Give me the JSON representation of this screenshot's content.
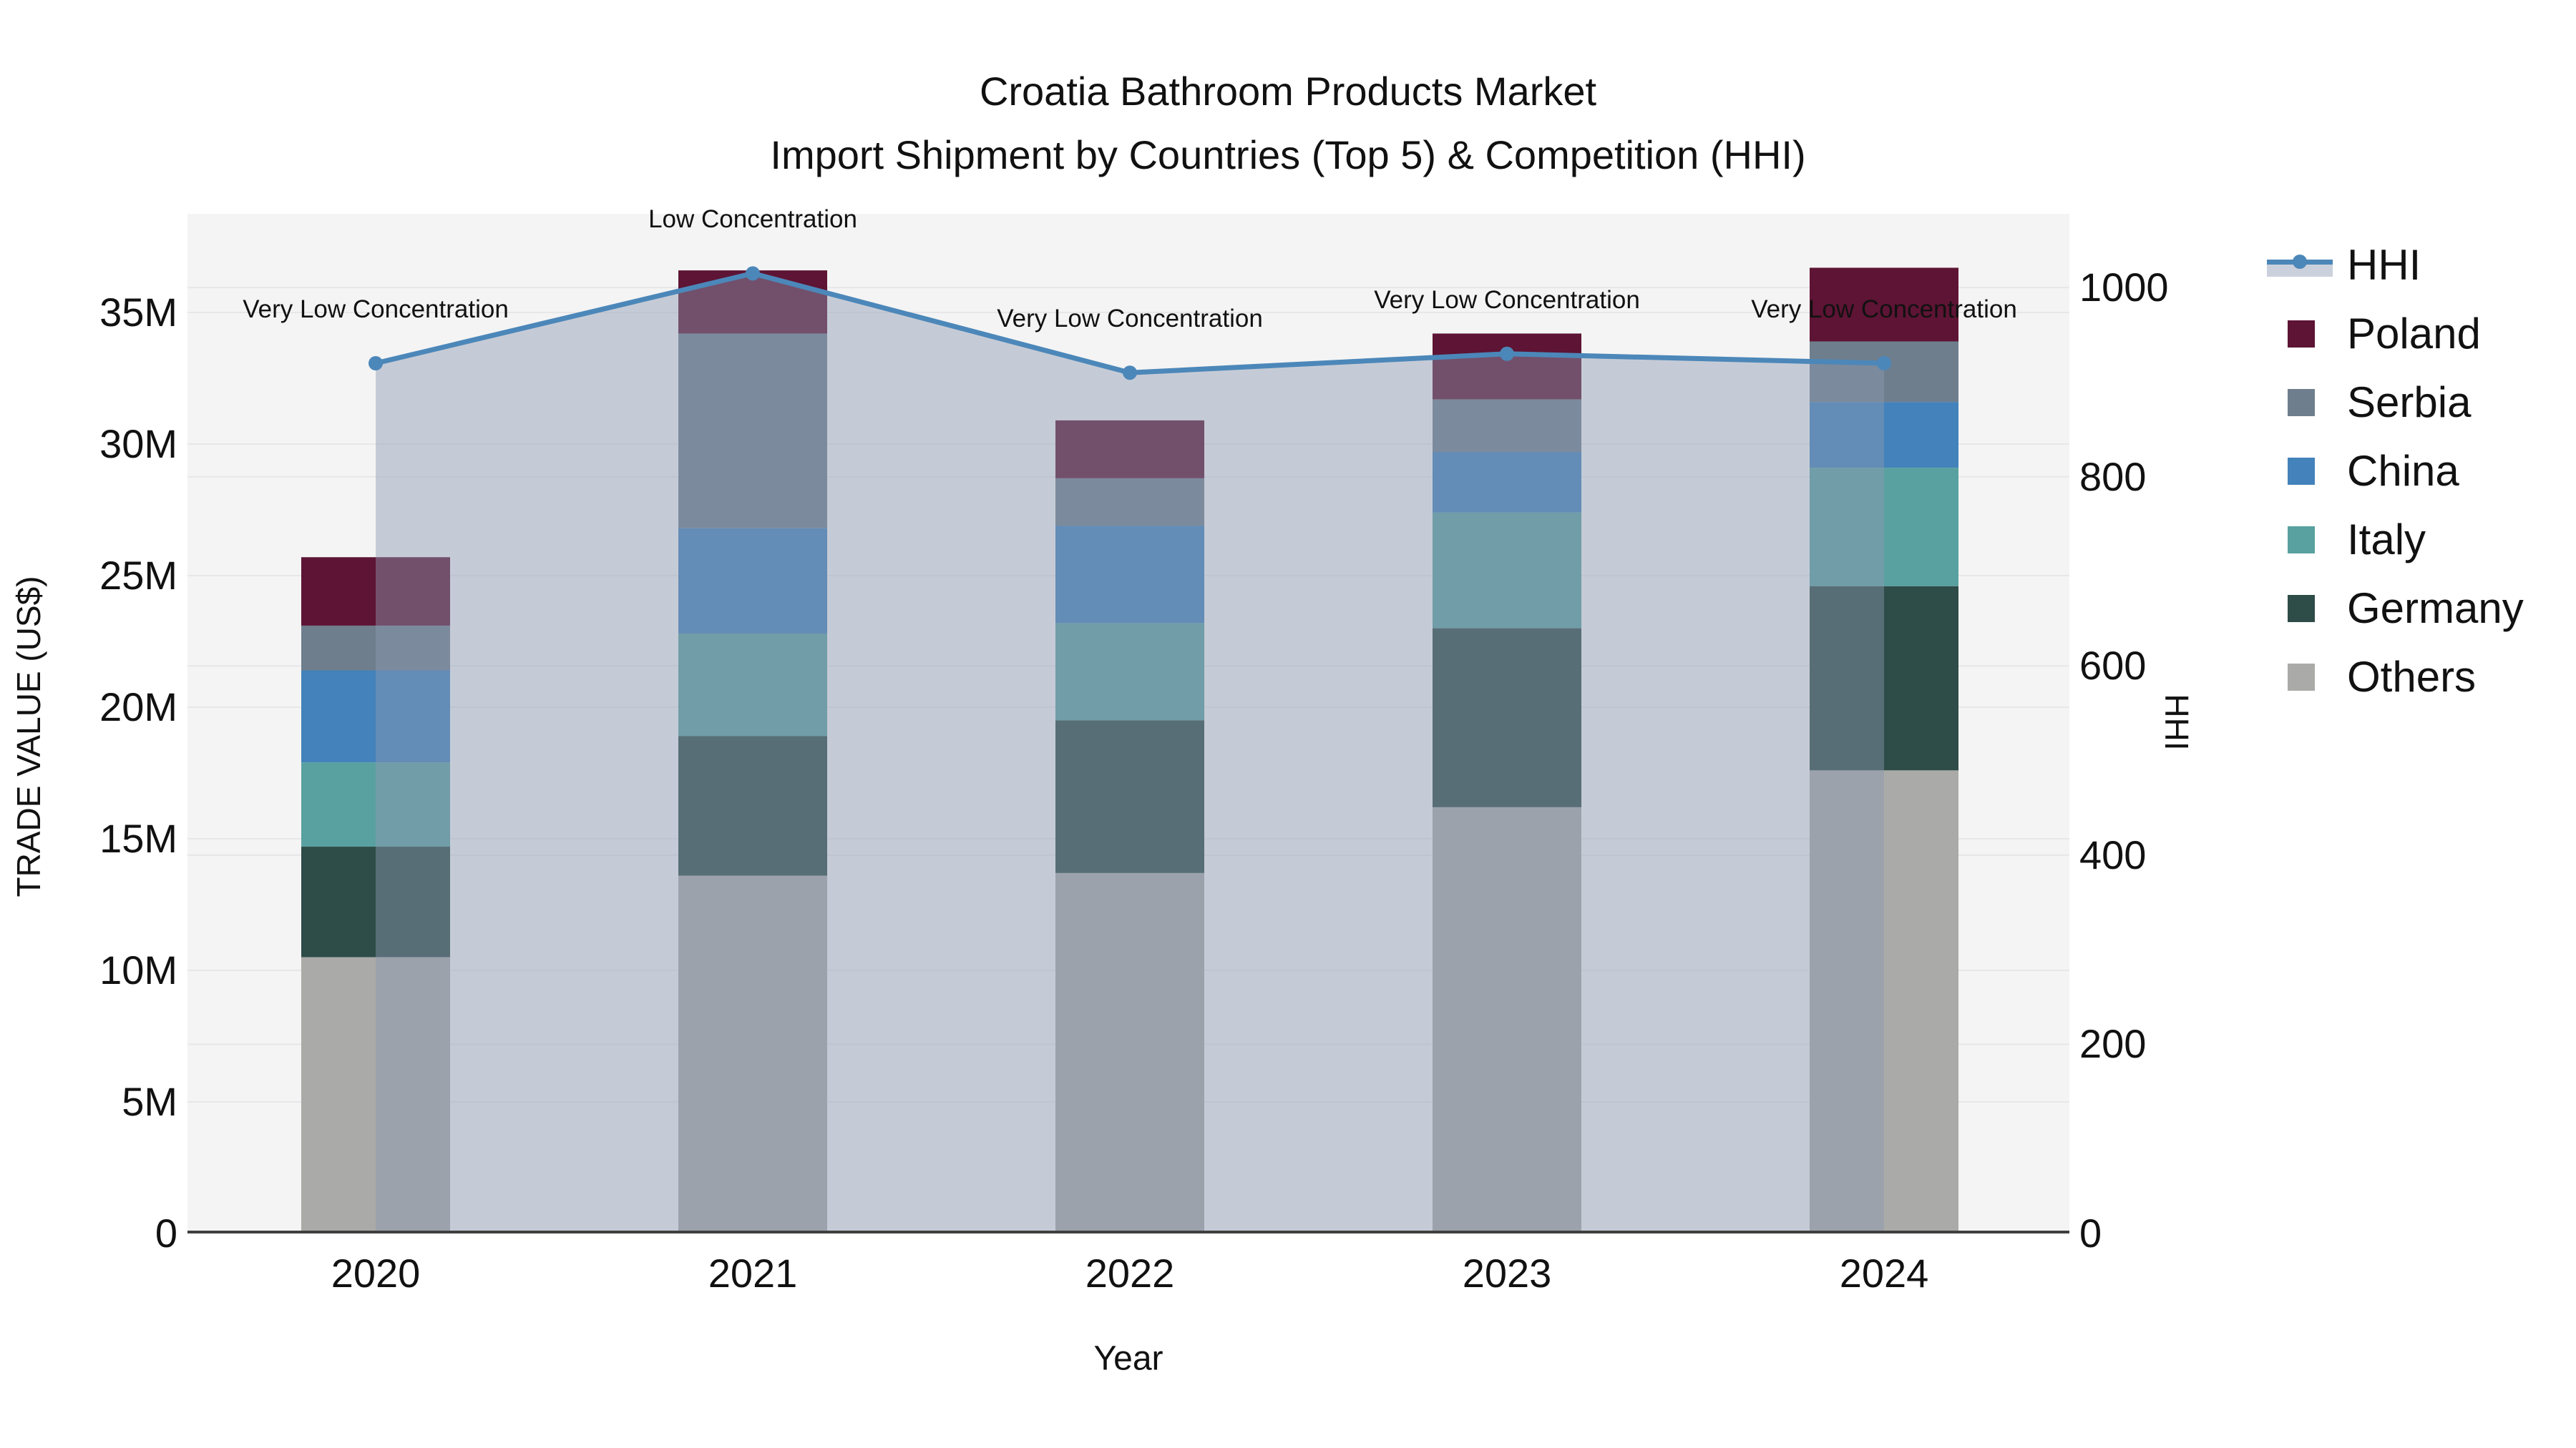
{
  "title": {
    "line1": "Croatia Bathroom Products Market",
    "line2": "Import Shipment by Countries (Top 5) & Competition (HHI)"
  },
  "axes": {
    "left": {
      "title": "TRADE VALUE (US$)",
      "ticks": [
        "0",
        "5M",
        "10M",
        "15M",
        "20M",
        "25M",
        "30M",
        "35M"
      ],
      "tick_values": [
        0,
        5,
        10,
        15,
        20,
        25,
        30,
        35
      ]
    },
    "right": {
      "title": "HHI",
      "ticks": [
        "0",
        "200",
        "400",
        "600",
        "800",
        "1000"
      ],
      "tick_values": [
        0,
        200,
        400,
        600,
        800,
        1000
      ]
    },
    "x": {
      "title": "Year"
    }
  },
  "legend": {
    "items": [
      {
        "label": "HHI",
        "type": "line",
        "color": "#4C87B9"
      },
      {
        "label": "Poland",
        "type": "square",
        "color": "#5E1434"
      },
      {
        "label": "Serbia",
        "type": "square",
        "color": "#6F7E8D"
      },
      {
        "label": "China",
        "type": "square",
        "color": "#4382BA"
      },
      {
        "label": "Italy",
        "type": "square",
        "color": "#59A1A0"
      },
      {
        "label": "Germany",
        "type": "square",
        "color": "#2E4C48"
      },
      {
        "label": "Others",
        "type": "square",
        "color": "#AAAAA8"
      }
    ]
  },
  "chart_data": {
    "type": "bar+line",
    "title": "Croatia Bathroom Products Market — Import Shipment by Countries (Top 5) & Competition (HHI)",
    "categories": [
      "2020",
      "2021",
      "2022",
      "2023",
      "2024"
    ],
    "xlabel": "Year",
    "ylabel_left": "TRADE VALUE (US$)",
    "ylabel_right": "HHI",
    "unit_left": "millions US$",
    "stack_order_bottom_to_top": [
      "Others",
      "Germany",
      "Italy",
      "China",
      "Serbia",
      "Poland"
    ],
    "series": [
      {
        "name": "Poland",
        "values": [
          2.6,
          2.4,
          2.2,
          2.5,
          2.8
        ],
        "color": "#5E1434"
      },
      {
        "name": "Serbia",
        "values": [
          1.7,
          7.4,
          1.8,
          2.0,
          2.3
        ],
        "color": "#6F7E8D"
      },
      {
        "name": "China",
        "values": [
          3.5,
          4.0,
          3.7,
          2.3,
          2.5
        ],
        "color": "#4382BA"
      },
      {
        "name": "Italy",
        "values": [
          3.2,
          3.9,
          3.7,
          4.4,
          4.5
        ],
        "color": "#59A1A0"
      },
      {
        "name": "Germany",
        "values": [
          4.2,
          5.3,
          5.8,
          6.8,
          7.0
        ],
        "color": "#2E4C48"
      },
      {
        "name": "Others",
        "values": [
          10.5,
          13.6,
          13.7,
          16.2,
          17.6
        ],
        "color": "#AAAAA8"
      }
    ],
    "bar_totals": [
      25.7,
      36.6,
      30.9,
      34.2,
      36.7
    ],
    "hhi": {
      "name": "HHI",
      "values": [
        920,
        1015,
        910,
        930,
        920
      ],
      "line_color": "#4C87B9",
      "area_fill": "rgba(140,153,178,0.45)"
    },
    "annotations": [
      "Very Low Concentration",
      "Low Concentration",
      "Very Low Concentration",
      "Very Low Concentration",
      "Very Low Concentration"
    ],
    "ylim_left": [
      0,
      38.75
    ],
    "ylim_right": [
      0,
      1078
    ],
    "grid": true,
    "plot_bg": "#F4F4F4",
    "grid_color": "#E7E7E9",
    "axisline_color": "#3F3F3F",
    "legend_position": "right"
  }
}
